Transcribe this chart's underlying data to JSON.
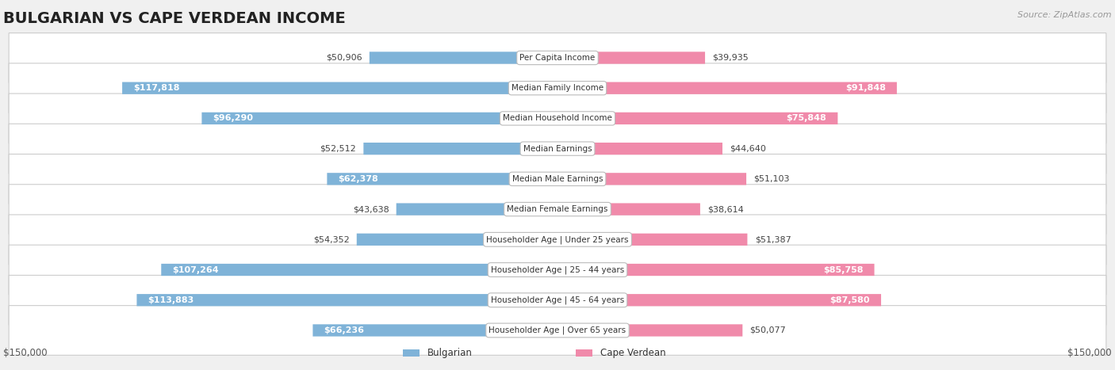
{
  "title": "BULGARIAN VS CAPE VERDEAN INCOME",
  "source": "Source: ZipAtlas.com",
  "categories": [
    "Per Capita Income",
    "Median Family Income",
    "Median Household Income",
    "Median Earnings",
    "Median Male Earnings",
    "Median Female Earnings",
    "Householder Age | Under 25 years",
    "Householder Age | 25 - 44 years",
    "Householder Age | 45 - 64 years",
    "Householder Age | Over 65 years"
  ],
  "bulgarian_values": [
    50906,
    117818,
    96290,
    52512,
    62378,
    43638,
    54352,
    107264,
    113883,
    66236
  ],
  "capeverdean_values": [
    39935,
    91848,
    75848,
    44640,
    51103,
    38614,
    51387,
    85758,
    87580,
    50077
  ],
  "bulgarian_color": "#7fb3d8",
  "capeverdean_color": "#f08aaa",
  "max_value": 150000,
  "bg_color": "#f0f0f0",
  "row_bg_light": "#fafafa",
  "row_bg_dark": "#f0f0f0",
  "label_bg": "#ffffff",
  "bulgarian_label": "Bulgarian",
  "capeverdean_label": "Cape Verdean",
  "white_threshold": 55000,
  "title_fontsize": 14,
  "value_fontsize": 8,
  "cat_fontsize": 7.5,
  "legend_fontsize": 8.5,
  "axis_fontsize": 8.5
}
